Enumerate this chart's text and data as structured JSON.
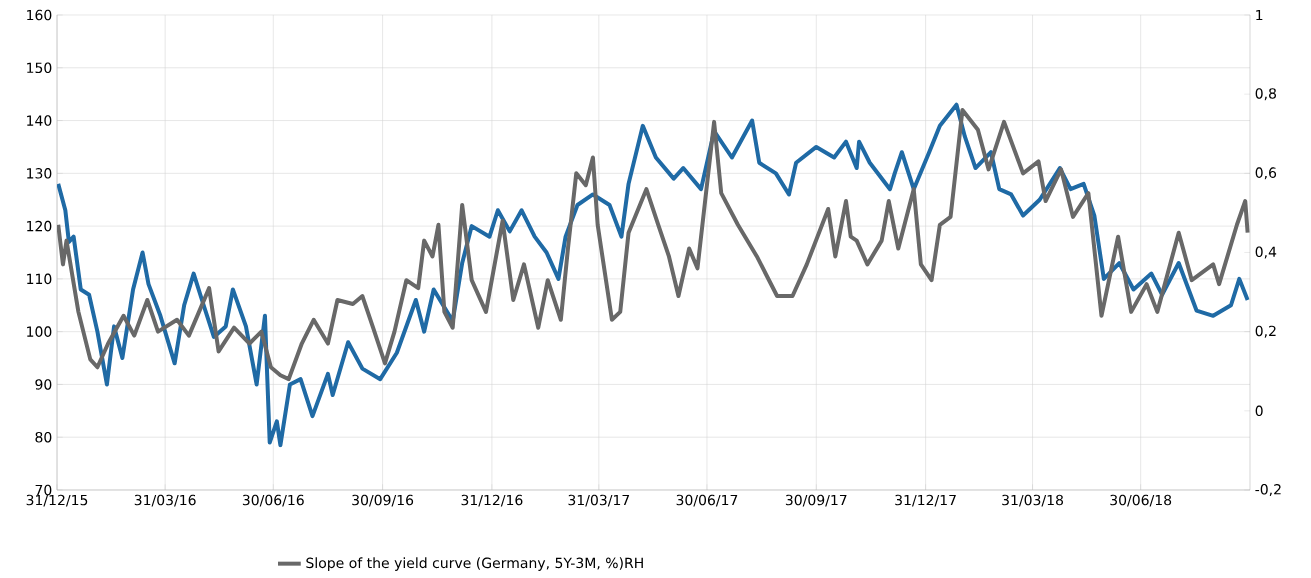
{
  "chart_data": {
    "type": "line",
    "xlim": [
      "2015-12-31",
      "2018-09-30"
    ],
    "xticks": [
      {
        "value": "2015-12-31",
        "label": "31/12/15"
      },
      {
        "value": "2016-03-31",
        "label": "31/03/16"
      },
      {
        "value": "2016-06-30",
        "label": "30/06/16"
      },
      {
        "value": "2016-09-30",
        "label": "30/09/16"
      },
      {
        "value": "2016-12-31",
        "label": "31/12/16"
      },
      {
        "value": "2017-03-31",
        "label": "31/03/17"
      },
      {
        "value": "2017-06-30",
        "label": "30/06/17"
      },
      {
        "value": "2017-09-30",
        "label": "30/09/17"
      },
      {
        "value": "2017-12-31",
        "label": "31/12/17"
      },
      {
        "value": "2018-03-31",
        "label": "31/03/18"
      },
      {
        "value": "2018-06-30",
        "label": "30/06/18"
      }
    ],
    "ylim": [
      70,
      160
    ],
    "yticks": [
      70,
      80,
      90,
      100,
      110,
      120,
      130,
      140,
      150,
      160
    ],
    "y2lim": [
      -0.2,
      1
    ],
    "y2ticks": [
      {
        "value": -0.2,
        "label": "-0,2"
      },
      0,
      {
        "value": 0.2,
        "label": "0,2"
      },
      {
        "value": 0.4,
        "label": "0,4"
      },
      {
        "value": 0.6,
        "label": "0,6"
      },
      {
        "value": 0.8,
        "label": "0,8"
      },
      1
    ],
    "grid": true,
    "legend": "bottom",
    "marker": "none",
    "line_style": "solid",
    "series": [
      {
        "color": "#1f6aa5",
        "x": [
          "2016-01-01",
          "2016-01-07",
          "2016-01-10",
          "2016-01-14",
          "2016-01-20",
          "2016-01-27",
          "2016-02-03",
          "2016-02-11",
          "2016-02-17",
          "2016-02-24",
          "2016-03-04",
          "2016-03-12",
          "2016-03-17",
          "2016-03-27",
          "2016-04-08",
          "2016-04-16",
          "2016-04-24",
          "2016-05-01",
          "2016-05-11",
          "2016-05-21",
          "2016-05-27",
          "2016-06-07",
          "2016-06-16",
          "2016-06-23",
          "2016-06-27",
          "2016-07-03",
          "2016-07-06",
          "2016-07-14",
          "2016-07-23",
          "2016-08-02",
          "2016-08-15",
          "2016-08-19",
          "2016-09-01",
          "2016-09-13",
          "2016-09-28",
          "2016-10-12",
          "2016-10-28",
          "2016-11-04",
          "2016-11-12",
          "2016-11-28",
          "2016-12-06",
          "2016-12-14",
          "2016-12-29",
          "2017-01-05",
          "2017-01-15",
          "2017-01-25",
          "2017-02-05",
          "2017-02-15",
          "2017-02-25",
          "2017-03-03",
          "2017-03-13",
          "2017-03-26",
          "2017-04-09",
          "2017-04-19",
          "2017-04-25",
          "2017-05-07",
          "2017-05-18",
          "2017-06-02",
          "2017-06-10",
          "2017-06-25",
          "2017-07-06",
          "2017-07-21",
          "2017-08-07",
          "2017-08-13",
          "2017-08-27",
          "2017-09-07",
          "2017-09-13",
          "2017-09-30",
          "2017-10-15",
          "2017-10-25",
          "2017-11-03",
          "2017-11-05",
          "2017-11-14",
          "2017-12-01",
          "2017-12-05",
          "2017-12-11",
          "2017-12-21",
          "2018-01-03",
          "2018-01-12",
          "2018-01-26",
          "2018-02-02",
          "2018-02-11",
          "2018-02-24",
          "2018-03-03",
          "2018-03-13",
          "2018-03-23",
          "2018-04-06",
          "2018-04-23",
          "2018-05-02",
          "2018-05-13",
          "2018-05-22",
          "2018-05-30",
          "2018-06-12",
          "2018-06-24",
          "2018-07-09",
          "2018-07-18",
          "2018-08-01",
          "2018-08-16",
          "2018-08-30",
          "2018-09-14",
          "2018-09-21",
          "2018-09-28"
        ],
        "values": [
          128,
          123,
          117,
          118,
          108,
          107,
          100,
          90,
          101,
          95,
          108,
          115,
          109,
          103,
          94,
          105,
          111,
          106,
          99,
          101,
          108,
          101,
          90,
          103,
          79,
          83,
          78.5,
          90,
          91,
          84,
          92,
          88,
          98,
          93,
          91,
          96,
          106,
          100,
          108,
          102,
          113,
          120,
          118,
          123,
          119,
          123,
          118,
          115,
          110,
          118,
          124,
          126,
          124,
          118,
          128,
          139,
          133,
          129,
          131,
          127,
          138,
          133,
          140,
          132,
          130,
          126,
          132,
          135,
          133,
          136,
          131,
          136,
          132,
          127,
          130,
          134,
          127,
          134,
          139,
          143,
          137,
          131,
          134,
          127,
          126,
          122,
          125,
          131,
          127,
          128,
          122,
          110,
          113,
          108,
          111,
          107,
          113,
          104,
          103,
          105,
          110,
          106
        ]
      },
      {
        "name": "Slope of the yield curve (Germany, 5Y-3M, %)RH",
        "color": "#686868",
        "axis": "y2",
        "x": [
          "2016-01-01",
          "2016-01-05",
          "2016-01-08",
          "2016-01-18",
          "2016-01-28",
          "2016-02-03",
          "2016-02-12",
          "2016-02-25",
          "2016-03-05",
          "2016-03-16",
          "2016-03-25",
          "2016-04-10",
          "2016-04-20",
          "2016-05-07",
          "2016-05-15",
          "2016-05-28",
          "2016-06-10",
          "2016-06-20",
          "2016-06-28",
          "2016-07-06",
          "2016-07-13",
          "2016-07-24",
          "2016-08-03",
          "2016-08-15",
          "2016-08-23",
          "2016-09-05",
          "2016-09-13",
          "2016-09-22",
          "2016-10-02",
          "2016-10-10",
          "2016-10-20",
          "2016-10-30",
          "2016-11-04",
          "2016-11-11",
          "2016-11-16",
          "2016-11-21",
          "2016-11-28",
          "2016-12-06",
          "2016-12-14",
          "2016-12-26",
          "2017-01-09",
          "2017-01-18",
          "2017-01-27",
          "2017-02-08",
          "2017-02-16",
          "2017-02-27",
          "2017-03-05",
          "2017-03-12",
          "2017-03-20",
          "2017-03-26",
          "2017-03-30",
          "2017-04-11",
          "2017-04-18",
          "2017-04-25",
          "2017-05-10",
          "2017-05-20",
          "2017-05-29",
          "2017-06-06",
          "2017-06-15",
          "2017-06-22",
          "2017-07-06",
          "2017-07-12",
          "2017-07-26",
          "2017-08-11",
          "2017-08-28",
          "2017-09-10",
          "2017-09-22",
          "2017-10-10",
          "2017-10-16",
          "2017-10-25",
          "2017-10-29",
          "2017-11-03",
          "2017-11-12",
          "2017-11-24",
          "2017-11-30",
          "2017-12-08",
          "2017-12-21",
          "2017-12-27",
          "2018-01-05",
          "2018-01-12",
          "2018-01-21",
          "2018-01-31",
          "2018-02-13",
          "2018-02-22",
          "2018-03-07",
          "2018-03-23",
          "2018-04-05",
          "2018-04-11",
          "2018-04-24",
          "2018-05-04",
          "2018-05-17",
          "2018-05-28",
          "2018-06-11",
          "2018-06-22",
          "2018-07-05",
          "2018-07-14",
          "2018-08-01",
          "2018-08-12",
          "2018-08-30",
          "2018-09-04",
          "2018-09-19",
          "2018-09-26",
          "2018-09-28"
        ],
        "values": [
          0.47,
          0.37,
          0.43,
          0.25,
          0.13,
          0.11,
          0.17,
          0.24,
          0.19,
          0.28,
          0.2,
          0.23,
          0.19,
          0.31,
          0.15,
          0.21,
          0.17,
          0.2,
          0.11,
          0.09,
          0.08,
          0.17,
          0.23,
          0.17,
          0.28,
          0.27,
          0.29,
          0.21,
          0.12,
          0.2,
          0.33,
          0.31,
          0.43,
          0.39,
          0.47,
          0.25,
          0.21,
          0.52,
          0.33,
          0.25,
          0.48,
          0.28,
          0.37,
          0.21,
          0.33,
          0.23,
          0.41,
          0.6,
          0.57,
          0.64,
          0.47,
          0.23,
          0.25,
          0.45,
          0.56,
          0.47,
          0.39,
          0.29,
          0.41,
          0.36,
          0.73,
          0.55,
          0.47,
          0.39,
          0.29,
          0.29,
          0.37,
          0.51,
          0.39,
          0.53,
          0.44,
          0.43,
          0.37,
          0.43,
          0.53,
          0.41,
          0.56,
          0.37,
          0.33,
          0.47,
          0.49,
          0.76,
          0.71,
          0.61,
          0.73,
          0.6,
          0.63,
          0.53,
          0.61,
          0.49,
          0.55,
          0.24,
          0.44,
          0.25,
          0.32,
          0.25,
          0.45,
          0.33,
          0.37,
          0.32,
          0.47,
          0.53,
          0.45
        ]
      }
    ]
  }
}
